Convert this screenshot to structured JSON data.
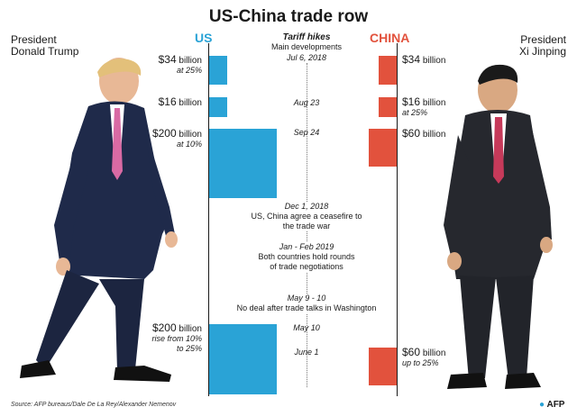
{
  "title": "US-China trade row",
  "trump_label": [
    "President",
    "Donald Trump"
  ],
  "xi_label": [
    "President",
    "Xi Jinping"
  ],
  "us_header": "US",
  "china_header": "CHINA",
  "tariff_title": "Tariff hikes",
  "tariff_subtitle": "Main developments",
  "events": [
    {
      "date": "Jul 6, 2018"
    },
    {
      "date": "Aug 23"
    },
    {
      "date": "Sep 24"
    },
    {
      "date": "Dec 1, 2018",
      "text": [
        "US, China agree a ceasefire to",
        "the trade war"
      ]
    },
    {
      "date": "Jan - Feb 2019",
      "text": [
        "Both countries hold rounds",
        "of trade negotiations"
      ]
    },
    {
      "date": "May 9 - 10",
      "text": [
        "No deal after trade talks in Washington"
      ]
    },
    {
      "date": "May 10"
    },
    {
      "date": "June 1"
    }
  ],
  "us_tariffs": [
    {
      "amount": "$34",
      "unit": "billion",
      "note": "at 25%",
      "value": 34
    },
    {
      "amount": "$16",
      "unit": "billion",
      "note": "",
      "value": 16
    },
    {
      "amount": "$200",
      "unit": "billion",
      "note": "at 10%",
      "value": 200
    },
    {
      "amount": "$200",
      "unit": "billion",
      "note": [
        "rise from 10%",
        "to 25%"
      ],
      "value": 200
    }
  ],
  "china_tariffs": [
    {
      "amount": "$34",
      "unit": "billion",
      "note": "",
      "value": 34
    },
    {
      "amount": "$16",
      "unit": "billion",
      "note": "at 25%",
      "value": 16
    },
    {
      "amount": "$60",
      "unit": "billion",
      "note": "",
      "value": 60
    },
    {
      "amount": "$60",
      "unit": "billion",
      "note": "up to 25%",
      "value": 60
    }
  ],
  "source": "Source: AFP bureaus/Dale De La Rey/Alexander Nemenov",
  "logo": "AFP",
  "colors": {
    "us": "#2aa3d6",
    "china": "#e2523d",
    "text": "#1a1a1a"
  }
}
